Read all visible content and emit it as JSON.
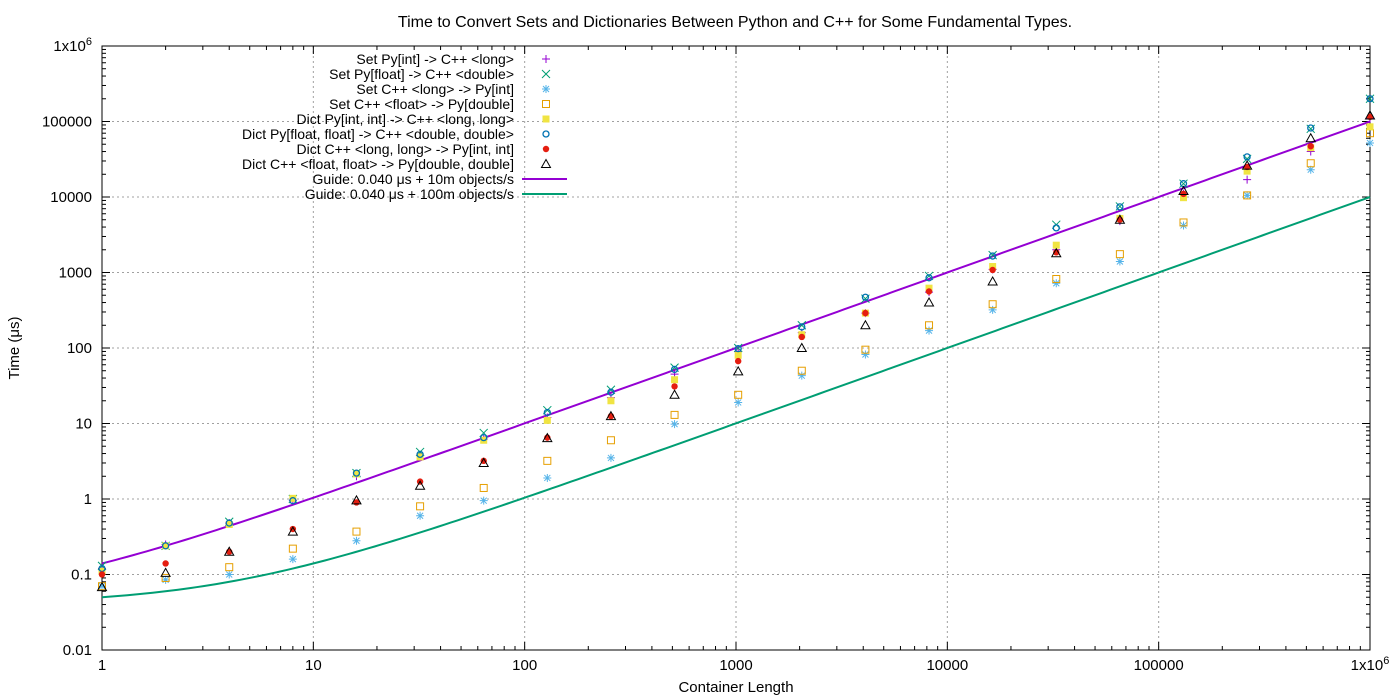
{
  "chart_data": {
    "type": "scatter",
    "title": "Time to Convert Sets and Dictionaries Between Python and C++ for Some Fundamental Types.",
    "xlabel": "Container Length",
    "ylabel": "Time (μs)",
    "xscale": "log",
    "yscale": "log",
    "xlim": [
      1,
      1000000
    ],
    "ylim": [
      0.01,
      1000000
    ],
    "grid": true,
    "legend_position": "top-left",
    "x_ticks": [
      {
        "value": 1,
        "label": "1"
      },
      {
        "value": 10,
        "label": "10"
      },
      {
        "value": 100,
        "label": "100"
      },
      {
        "value": 1000,
        "label": "1000"
      },
      {
        "value": 10000,
        "label": "10000"
      },
      {
        "value": 100000,
        "label": "100000"
      },
      {
        "value": 1000000,
        "label": "1x10",
        "sup": "6"
      }
    ],
    "y_ticks": [
      {
        "value": 0.01,
        "label": "0.01"
      },
      {
        "value": 0.1,
        "label": "0.1"
      },
      {
        "value": 1,
        "label": "1"
      },
      {
        "value": 10,
        "label": "10"
      },
      {
        "value": 100,
        "label": "100"
      },
      {
        "value": 1000,
        "label": "1000"
      },
      {
        "value": 10000,
        "label": "10000"
      },
      {
        "value": 100000,
        "label": "100000"
      },
      {
        "value": 1000000,
        "label": "1x10",
        "sup": "6"
      }
    ],
    "x": [
      1,
      2,
      4,
      8,
      16,
      32,
      64,
      128,
      256,
      512,
      1024,
      2048,
      4096,
      8192,
      16384,
      32768,
      65536,
      131072,
      262144,
      524288,
      1048576
    ],
    "series": [
      {
        "name": "Set Py[int] -> C++ <long>",
        "marker": "plus",
        "color": "#9400d3",
        "values": [
          0.12,
          0.25,
          0.48,
          0.95,
          2.0,
          3.8,
          6.2,
          12,
          22,
          45,
          90,
          160,
          290,
          550,
          1100,
          2000,
          4800,
          11000,
          17000,
          40000,
          110000
        ]
      },
      {
        "name": "Set Py[float] -> C++ <double>",
        "marker": "cross",
        "color": "#009e73",
        "values": [
          0.13,
          0.24,
          0.5,
          1.0,
          2.2,
          4.2,
          7.5,
          15,
          28,
          55,
          100,
          200,
          450,
          900,
          1700,
          4300,
          7500,
          15000,
          32000,
          80000,
          200000
        ]
      },
      {
        "name": "Set C++ <long> -> Py[int]",
        "marker": "star",
        "color": "#56b4e9",
        "values": [
          0.07,
          0.085,
          0.1,
          0.16,
          0.28,
          0.6,
          0.95,
          1.9,
          3.5,
          9.8,
          19,
          43,
          82,
          170,
          320,
          720,
          1400,
          4200,
          10500,
          23000,
          52000
        ]
      },
      {
        "name": "Set C++ <float> -> Py[double]",
        "marker": "box",
        "color": "#e69f00",
        "values": [
          0.07,
          0.09,
          0.125,
          0.22,
          0.37,
          0.8,
          1.4,
          3.2,
          6.0,
          13,
          24,
          50,
          95,
          200,
          380,
          820,
          1750,
          4600,
          10500,
          28000,
          70000
        ]
      },
      {
        "name": "Dict Py[int, int] -> C++ <long, long>",
        "marker": "filled-box",
        "color": "#f0e442",
        "values": [
          0.11,
          0.24,
          0.46,
          1.02,
          2.15,
          3.6,
          6.0,
          11,
          20,
          38,
          80,
          150,
          290,
          620,
          1200,
          2300,
          5200,
          9800,
          22000,
          45000,
          85000
        ]
      },
      {
        "name": "Dict Py[float, float] -> C++ <double, double>",
        "marker": "circle",
        "color": "#0072b2",
        "values": [
          0.12,
          0.24,
          0.48,
          0.95,
          2.2,
          3.9,
          6.5,
          14,
          26,
          52,
          98,
          190,
          470,
          850,
          1650,
          3900,
          7400,
          15000,
          34000,
          82000,
          200000
        ]
      },
      {
        "name": "Dict C++ <long, long> -> Py[int,  int]",
        "marker": "filled-circle",
        "color": "#e51e10",
        "values": [
          0.1,
          0.14,
          0.2,
          0.4,
          0.9,
          1.7,
          3.2,
          6.5,
          12.5,
          31,
          67,
          140,
          290,
          560,
          1080,
          1850,
          5000,
          11000,
          25000,
          47000,
          115000
        ]
      },
      {
        "name": "Dict C++ <float, float> -> Py[double, double]",
        "marker": "triangle",
        "color": "#000000",
        "values": [
          0.068,
          0.105,
          0.2,
          0.37,
          0.96,
          1.5,
          3.0,
          6.4,
          12.5,
          24,
          49,
          100,
          200,
          400,
          760,
          1800,
          5000,
          12000,
          26000,
          60000,
          120000
        ]
      }
    ],
    "guides": [
      {
        "name": "Guide: 0.040 μs + 10m objects/s",
        "color": "#9400d3",
        "offset_us": 0.04,
        "rate_per_us": 10
      },
      {
        "name": "Guide: 0.040 μs + 100m objects/s",
        "color": "#009e73",
        "offset_us": 0.04,
        "rate_per_us": 100
      }
    ]
  }
}
